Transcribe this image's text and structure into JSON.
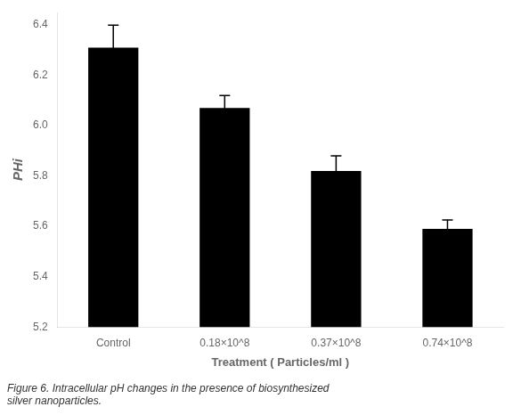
{
  "chart_data": {
    "type": "bar",
    "categories": [
      "Control",
      "0.18×10^8",
      "0.37×10^8",
      "0.74×10^8"
    ],
    "values": [
      6.31,
      6.07,
      5.82,
      5.59
    ],
    "errors": [
      0.09,
      0.05,
      0.06,
      0.035
    ],
    "color": "#000000",
    "ylim": [
      5.2,
      6.45
    ],
    "yticks": [
      5.2,
      5.4,
      5.6,
      5.8,
      {
        "value": 6.0,
        "label": "6.0"
      },
      6.2,
      6.4
    ],
    "ylabel": "PHi",
    "xlabel": "Treatment ( Particles/ml )",
    "annotations": [
      "Figure 6. Intracellular pH changes in the presence of biosynthesized\nsilver nanoparticles."
    ],
    "grid": false
  }
}
